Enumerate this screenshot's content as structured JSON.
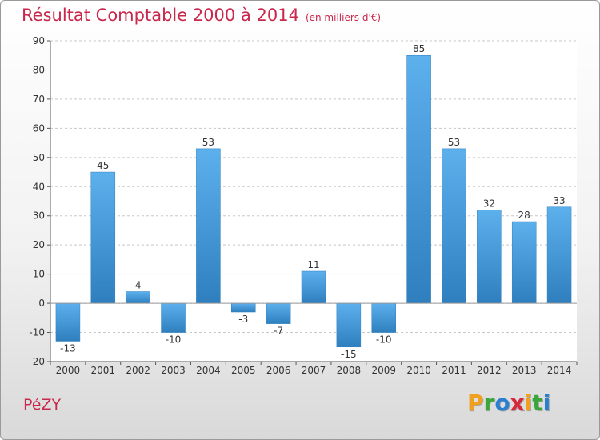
{
  "chart_data": {
    "type": "bar",
    "title": "Résultat Comptable 2000 à 2014",
    "subtitle": "(en milliers d'€)",
    "categories": [
      "2000",
      "2001",
      "2002",
      "2003",
      "2004",
      "2005",
      "2006",
      "2007",
      "2008",
      "2009",
      "2010",
      "2011",
      "2012",
      "2013",
      "2014"
    ],
    "values": [
      -13,
      45,
      4,
      -10,
      53,
      -3,
      -7,
      11,
      -15,
      -10,
      85,
      53,
      32,
      28,
      33
    ],
    "data_labels": [
      "-13",
      "45",
      "4",
      "-10",
      "53",
      "-3",
      "-7",
      "11",
      "-15",
      "-10",
      "85",
      "53",
      "32",
      "28",
      "33"
    ],
    "ylim": [
      -20,
      90
    ],
    "yticks": [
      -20,
      -10,
      0,
      10,
      20,
      30,
      40,
      50,
      60,
      70,
      80,
      90
    ],
    "ytick_labels": [
      "-20",
      "-10",
      "0",
      "10",
      "20",
      "30",
      "40",
      "50",
      "60",
      "70",
      "80",
      "90"
    ],
    "xlabel": "",
    "ylabel": "",
    "grid": true,
    "bar_color": "#4a9fe0"
  },
  "footer": {
    "commune": "PéZY",
    "logo_letters": [
      "P",
      "r",
      "o",
      "x",
      "i",
      "t",
      "i"
    ],
    "logo_colors": [
      "#f0a01e",
      "#3aa63a",
      "#2a7fd0",
      "#d8283c",
      "#f0a01e",
      "#3aa63a",
      "#2a7fd0"
    ]
  },
  "colors": {
    "accent": "#c8284c"
  }
}
